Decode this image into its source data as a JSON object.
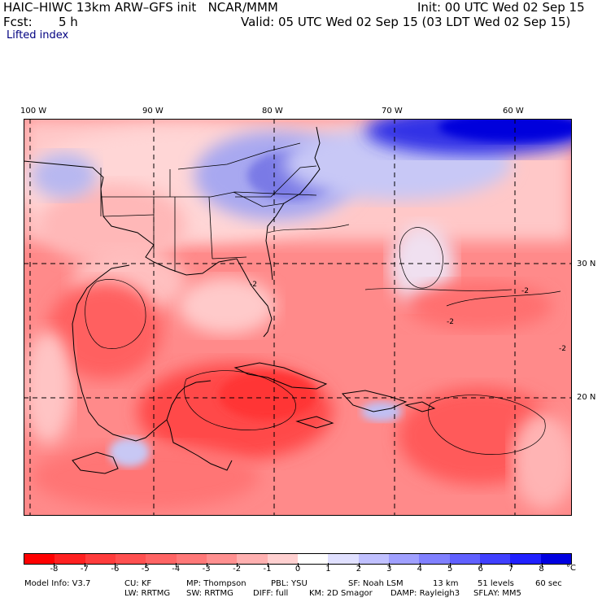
{
  "header": {
    "title_left": "HAIC–HIWC 13km ARW–GFS init   NCAR/MMM",
    "init": "Init: 00 UTC Wed 02 Sep 15",
    "fcst_label": "Fcst:",
    "fcst_value": "5 h",
    "valid": "Valid: 05 UTC Wed 02 Sep 15 (03 LDT Wed 02 Sep 15)",
    "field": "Lifted index"
  },
  "map": {
    "lon_labels": [
      "100 W",
      "90 W",
      "80 W",
      "70 W",
      "60 W"
    ],
    "lat_labels": [
      "30 N",
      "20 N"
    ],
    "contour_labels": [
      "-2",
      "-2",
      "-2",
      "-2"
    ]
  },
  "colorbar": {
    "ticks": [
      "-8",
      "-7",
      "-6",
      "-5",
      "-4",
      "-3",
      "-2",
      "-1",
      "0",
      "1",
      "2",
      "3",
      "4",
      "5",
      "6",
      "7",
      "8"
    ],
    "unit": "°C",
    "colors": [
      "#ff0000",
      "#ff2020",
      "#ff3c3c",
      "#ff5050",
      "#ff6464",
      "#ff7878",
      "#ff9090",
      "#ffb0b0",
      "#ffd0d0",
      "#ffffff",
      "#e0e0ff",
      "#c0c0ff",
      "#a0a0ff",
      "#8080ff",
      "#6060ff",
      "#4040ff",
      "#2020ff",
      "#0000e0"
    ]
  },
  "model_info": {
    "line1": [
      "Model Info: V3.7",
      "CU: KF",
      "MP: Thompson",
      "PBL: YSU",
      "SF: Noah LSM",
      "13 km",
      "51 levels",
      "60 sec"
    ],
    "line2": [
      "LW: RRTMG",
      "SW: RRTMG",
      "DIFF: full",
      "KM: 2D Smagor",
      "DAMP: Rayleigh3",
      "SFLAY: MM5"
    ]
  }
}
